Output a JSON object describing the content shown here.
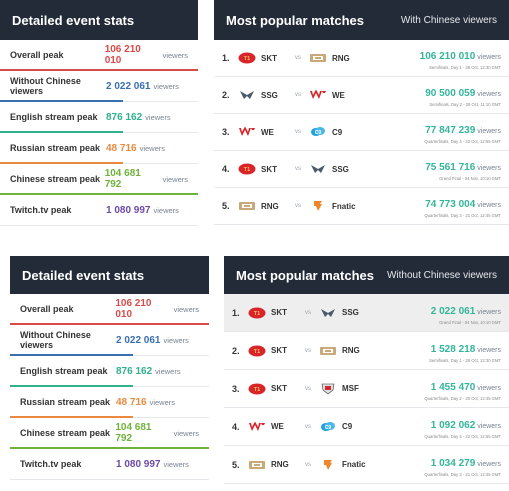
{
  "top": {
    "stats": {
      "title": "Detailed event stats",
      "rows": [
        {
          "label": "Overall peak",
          "value": "106 210 010",
          "unit": "viewers",
          "color": "#d84b4b"
        },
        {
          "label": "Without Chinese viewers",
          "value": "2 022 061",
          "unit": "viewers",
          "color": "#3a6fb0"
        },
        {
          "label": "English stream peak",
          "value": "876 162",
          "unit": "viewers",
          "color": "#2fb08e"
        },
        {
          "label": "Russian stream peak",
          "value": "48 716",
          "unit": "viewers",
          "color": "#e98a3e"
        },
        {
          "label": "Chinese stream peak",
          "value": "104 681 792",
          "unit": "viewers",
          "color": "#6fb23a"
        },
        {
          "label": "Twitch.tv peak",
          "value": "1 080 997",
          "unit": "viewers",
          "color": "#6c4aa6"
        }
      ]
    },
    "matches": {
      "title": "Most popular matches",
      "subtitle": "With Chinese viewers",
      "vs_label": "vs",
      "rows": [
        {
          "rank": "1.",
          "team1": "SKT",
          "logo1": "skt-logo-icon",
          "team2": "RNG",
          "logo2": "rng-logo-icon",
          "value": "106 210 010",
          "unit": "viewers",
          "sub": "Semifinals, Day 1 - 28 Oct, 12:30 GMT"
        },
        {
          "rank": "2.",
          "team1": "SSG",
          "logo1": "ssg-logo-icon",
          "team2": "WE",
          "logo2": "we-logo-icon",
          "value": "90 500 059",
          "unit": "viewers",
          "sub": "Semifinals, Day 2 - 29 Oct, 11:10 GMT"
        },
        {
          "rank": "3.",
          "team1": "WE",
          "logo1": "we-logo-icon",
          "team2": "C9",
          "logo2": "c9-logo-icon",
          "value": "77 847 239",
          "unit": "viewers",
          "sub": "Quarterfinals, Day 4 - 22 Oct, 12:55 GMT"
        },
        {
          "rank": "4.",
          "team1": "SKT",
          "logo1": "skt-logo-icon",
          "team2": "SSG",
          "logo2": "ssg-logo-icon",
          "value": "75 561 716",
          "unit": "viewers",
          "sub": "Grand Final - 04 Nov, 10:10 GMT"
        },
        {
          "rank": "5.",
          "team1": "RNG",
          "logo1": "rng-logo-icon",
          "team2": "Fnatic",
          "logo2": "fnatic-logo-icon",
          "value": "74 773 004",
          "unit": "viewers",
          "sub": "Quarterfinals, Day 3 - 21 Oct, 12:45 GMT"
        }
      ]
    }
  },
  "bottom": {
    "stats": {
      "title": "Detailed event stats",
      "rows": [
        {
          "label": "Overall peak",
          "value": "106 210 010",
          "unit": "viewers",
          "color": "#d84b4b"
        },
        {
          "label": "Without Chinese viewers",
          "value": "2 022 061",
          "unit": "viewers",
          "color": "#3a6fb0"
        },
        {
          "label": "English stream peak",
          "value": "876 162",
          "unit": "viewers",
          "color": "#2fb08e"
        },
        {
          "label": "Russian stream peak",
          "value": "48 716",
          "unit": "viewers",
          "color": "#e98a3e"
        },
        {
          "label": "Chinese stream peak",
          "value": "104 681 792",
          "unit": "viewers",
          "color": "#6fb23a"
        },
        {
          "label": "Twitch.tv peak",
          "value": "1 080 997",
          "unit": "viewers",
          "color": "#6c4aa6"
        }
      ]
    },
    "matches": {
      "title": "Most popular matches",
      "subtitle": "Without Chinese viewers",
      "vs_label": "vs",
      "rows": [
        {
          "rank": "1.",
          "team1": "SKT",
          "logo1": "skt-logo-icon",
          "team2": "SSG",
          "logo2": "ssg-logo-icon",
          "value": "2 022 061",
          "unit": "viewers",
          "sub": "Grand Final - 04 Nov, 10:10 GMT"
        },
        {
          "rank": "2.",
          "team1": "SKT",
          "logo1": "skt-logo-icon",
          "team2": "RNG",
          "logo2": "rng-logo-icon",
          "value": "1 528 218",
          "unit": "viewers",
          "sub": "Semifinals, Day 1 - 28 Oct, 12:30 GMT"
        },
        {
          "rank": "3.",
          "team1": "SKT",
          "logo1": "skt-logo-icon",
          "team2": "MSF",
          "logo2": "msf-logo-icon",
          "value": "1 455 470",
          "unit": "viewers",
          "sub": "Quarterfinals, Day 2 - 20 Oct, 12:45 GMT"
        },
        {
          "rank": "4.",
          "team1": "WE",
          "logo1": "we-logo-icon",
          "team2": "C9",
          "logo2": "c9-logo-icon",
          "value": "1 092 062",
          "unit": "viewers",
          "sub": "Quarterfinals, Day 4 - 22 Oct, 12:55 GMT"
        },
        {
          "rank": "5.",
          "team1": "RNG",
          "logo1": "rng-logo-icon",
          "team2": "Fnatic",
          "logo2": "fnatic-logo-icon",
          "value": "1 034 279",
          "unit": "viewers",
          "sub": "Quarterfinals, Day 3 - 21 Oct, 12:45 GMT"
        }
      ]
    }
  }
}
